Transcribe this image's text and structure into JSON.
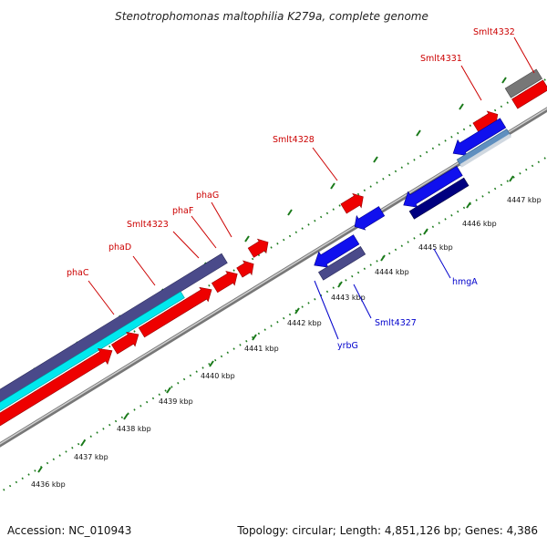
{
  "title": "Stenotrophomonas maltophilia K279a, complete genome",
  "footer": {
    "accession": "Accession: NC_010943",
    "topology": "Topology: circular; Length: 4,851,126 bp; Genes: 4,386"
  },
  "colors": {
    "top_strand_gene": "#ff0000",
    "bottom_strand_gene": "#0000ff",
    "label_top": "#cc0000",
    "label_bottom": "#0000cc",
    "cds_dark_slate": "#4a4a8a",
    "cds_cyan": "#00ffff",
    "cds_navy": "#000080",
    "cds_steel": "#5f8fbf",
    "cds_gray": "#777777",
    "backbone": "#888888",
    "tick_green": "#1a7a1a"
  },
  "gene_labels_top": [
    "phaC",
    "phaD",
    "Smlt4323",
    "phaF",
    "phaG",
    "Smlt4328",
    "Smlt4331",
    "Smlt4332"
  ],
  "gene_labels_bottom": [
    "yrbG",
    "Smlt4327",
    "hmgA"
  ],
  "tick_labels": [
    "4436 kbp",
    "4437 kbp",
    "4438 kbp",
    "4439 kbp",
    "4440 kbp",
    "4441 kbp",
    "4442 kbp",
    "4443 kbp",
    "4444 kbp",
    "4445 kbp",
    "4446 kbp",
    "4447 kbp"
  ]
}
